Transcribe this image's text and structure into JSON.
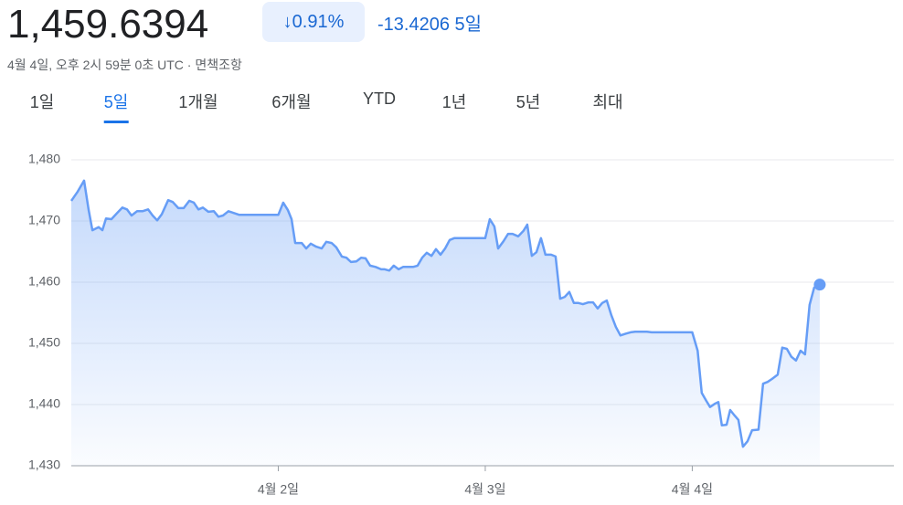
{
  "header": {
    "price": "1,459.6394",
    "change_percent": "0.91%",
    "change": "-13.4206",
    "period": "5일",
    "timestamp": "4월 4일, 오후 2시 59분 0초 UTC · 면책조항",
    "tabs": [
      "1일",
      "5일",
      "1개월",
      "6개월",
      "YTD",
      "1년",
      "5년",
      "최대"
    ],
    "selected_tab": 1
  },
  "chart_data": {
    "type": "line",
    "color": "#669df6",
    "grid": true,
    "x": [
      0,
      0.031,
      0.062,
      0.084,
      0.102,
      0.132,
      0.15,
      0.168,
      0.194,
      0.221,
      0.247,
      0.269,
      0.291,
      0.318,
      0.344,
      0.371,
      0.393,
      0.415,
      0.437,
      0.468,
      0.49,
      0.517,
      0.543,
      0.57,
      0.592,
      0.614,
      0.636,
      0.662,
      0.689,
      0.711,
      0.733,
      0.759,
      0.786,
      0.812,
      1.0,
      1.024,
      1.046,
      1.064,
      1.082,
      1.113,
      1.135,
      1.157,
      1.183,
      1.21,
      1.232,
      1.258,
      1.28,
      1.307,
      1.329,
      1.351,
      1.377,
      1.4,
      1.422,
      1.444,
      1.47,
      1.497,
      1.514,
      1.536,
      1.558,
      1.581,
      1.603,
      1.625,
      1.651,
      1.673,
      1.695,
      1.717,
      1.74,
      1.762,
      1.784,
      1.806,
      1.828,
      1.85,
      1.876,
      2.0,
      2.022,
      2.044,
      2.062,
      2.088,
      2.11,
      2.132,
      2.159,
      2.185,
      2.203,
      2.225,
      2.247,
      2.269,
      2.291,
      2.318,
      2.34,
      2.362,
      2.384,
      2.406,
      2.428,
      2.45,
      2.472,
      2.499,
      2.521,
      2.543,
      2.565,
      2.587,
      2.609,
      2.631,
      2.653,
      2.68,
      2.702,
      2.724,
      2.781,
      2.804,
      3.0,
      3.026,
      3.046,
      3.068,
      3.086,
      3.108,
      3.126,
      3.143,
      3.166,
      3.183,
      3.205,
      3.223,
      3.245,
      3.267,
      3.289,
      3.32,
      3.342,
      3.364,
      3.386,
      3.413,
      3.435,
      3.457,
      3.479,
      3.501,
      3.523,
      3.545,
      3.567,
      3.589,
      3.616
    ],
    "series": [
      {
        "values": [
          1473.3,
          1474.8,
          1476.6,
          1471.8,
          1468.5,
          1469,
          1468.5,
          1470.4,
          1470.3,
          1471.3,
          1472.2,
          1471.9,
          1470.9,
          1471.6,
          1471.6,
          1471.9,
          1470.9,
          1470.1,
          1471.1,
          1473.4,
          1473.1,
          1472.1,
          1472.1,
          1473.3,
          1473,
          1471.9,
          1472.2,
          1471.5,
          1471.6,
          1470.7,
          1470.9,
          1471.6,
          1471.3,
          1471,
          1471,
          1473,
          1471.8,
          1470.3,
          1466.4,
          1466.4,
          1465.5,
          1466.3,
          1465.8,
          1465.5,
          1466.6,
          1466.4,
          1465.7,
          1464.2,
          1464,
          1463.3,
          1463.4,
          1464,
          1463.9,
          1462.7,
          1462.5,
          1462.1,
          1462.1,
          1461.9,
          1462.7,
          1462.1,
          1462.5,
          1462.5,
          1462.5,
          1462.7,
          1464,
          1464.8,
          1464.3,
          1465.4,
          1464.5,
          1465.5,
          1466.9,
          1467.2,
          1467.2,
          1467.2,
          1470.3,
          1469.1,
          1465.5,
          1466.7,
          1467.9,
          1467.9,
          1467.5,
          1468.4,
          1469.4,
          1464.3,
          1464.9,
          1467.2,
          1464.5,
          1464.5,
          1464.2,
          1457.3,
          1457.6,
          1458.4,
          1456.6,
          1456.6,
          1456.4,
          1456.7,
          1456.7,
          1455.7,
          1456.6,
          1457,
          1454.6,
          1452.7,
          1451.3,
          1451.6,
          1451.8,
          1451.9,
          1451.9,
          1451.8,
          1451.8,
          1448.8,
          1441.9,
          1440.6,
          1439.6,
          1440.1,
          1440.4,
          1436.6,
          1436.7,
          1439.1,
          1438.2,
          1437.5,
          1433.1,
          1434,
          1435.8,
          1435.9,
          1443.4,
          1443.7,
          1444.2,
          1444.9,
          1449.3,
          1449.1,
          1447.8,
          1447.2,
          1448.8,
          1448.2,
          1456.3,
          1459.1,
          1459.6
        ]
      }
    ],
    "xlim": [
      0,
      3.974
    ],
    "xticks": [
      {
        "value": 1,
        "label": "4월 2일"
      },
      {
        "value": 2,
        "label": "4월 3일"
      },
      {
        "value": 3,
        "label": "4월 4일"
      }
    ],
    "ylim": [
      1430,
      1480
    ],
    "yticks": [
      {
        "value": 1430,
        "label": "1,430"
      },
      {
        "value": 1440,
        "label": "1,440"
      },
      {
        "value": 1450,
        "label": "1,450"
      },
      {
        "value": 1460,
        "label": "1,460"
      },
      {
        "value": 1470,
        "label": "1,470"
      },
      {
        "value": 1480,
        "label": "1,480"
      }
    ]
  }
}
